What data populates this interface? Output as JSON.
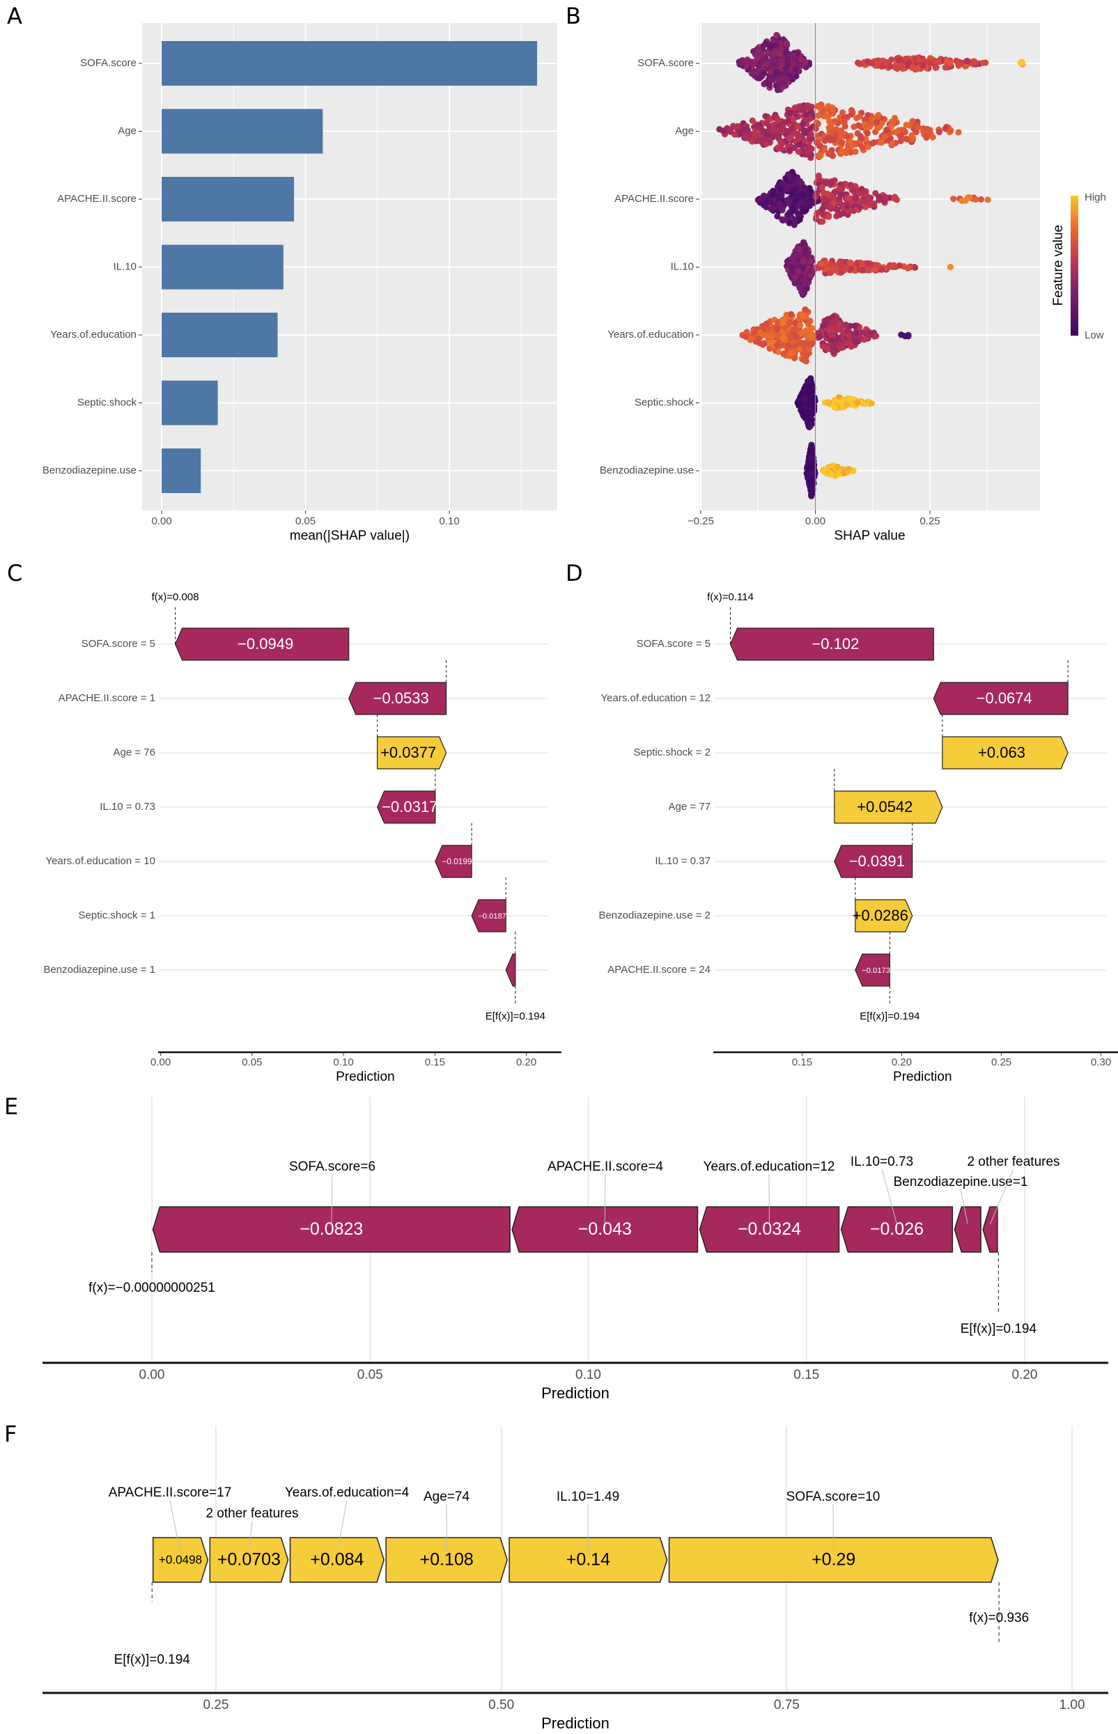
{
  "panel_labels": [
    "A",
    "B",
    "C",
    "D",
    "E",
    "F"
  ],
  "colors": {
    "bar": "#4e77a5",
    "panel_bg": "#ebebeb",
    "negative": "#a6295e",
    "positive": "#f5cd3a",
    "low": "#3d0965",
    "high": "#f9c82e"
  },
  "chart_data": [
    {
      "panel": "A",
      "type": "bar",
      "orientation": "horizontal",
      "categories": [
        "SOFA.score",
        "Age",
        "APACHE.II.score",
        "IL.10",
        "Years.of.education",
        "Septic.shock",
        "Benzodiazepine.use"
      ],
      "values": [
        0.1305,
        0.056,
        0.046,
        0.0423,
        0.0403,
        0.0195,
        0.0136
      ],
      "xlabel": "mean(|SHAP value|)",
      "xticks": [
        {
          "v": 0,
          "label": "0.00"
        },
        {
          "v": 0.05,
          "label": "0.05"
        },
        {
          "v": 0.1,
          "label": "0.10"
        }
      ],
      "xlim": [
        -0.0068,
        0.1375
      ],
      "grid": true
    },
    {
      "panel": "B",
      "type": "scatter",
      "subtype": "beeswarm",
      "categories": [
        "SOFA.score",
        "Age",
        "APACHE.II.score",
        "IL.10",
        "Years.of.education",
        "Septic.shock",
        "Benzodiazepine.use"
      ],
      "xlabel": "SHAP value",
      "xticks": [
        {
          "v": -0.25,
          "label": "−0.25"
        },
        {
          "v": 0,
          "label": "0.00"
        },
        {
          "v": 0.25,
          "label": "0.25"
        }
      ],
      "xlim": [
        -0.253,
        0.49
      ],
      "legend": {
        "title": "Feature value",
        "high": "High",
        "low": "Low",
        "placement": "right"
      },
      "distributions": [
        [
          {
            "from": -0.17,
            "to": -0.01,
            "peak": -0.085,
            "n": 260,
            "height": 1.0,
            "level": 0.3
          },
          {
            "from": 0.08,
            "to": 0.42,
            "peak": 0.2,
            "n": 150,
            "height": 0.22,
            "level": 0.6
          },
          {
            "from": 0.44,
            "to": 0.455,
            "peak": 0.45,
            "n": 4,
            "height": 0.1,
            "level": 0.95
          }
        ],
        [
          {
            "from": -0.22,
            "to": 0.0,
            "peak": -0.005,
            "n": 230,
            "height": 0.95,
            "level": 0.45
          },
          {
            "from": 0.0,
            "to": 0.34,
            "peak": 0.005,
            "n": 220,
            "height": 0.9,
            "level": 0.68
          }
        ],
        [
          {
            "from": -0.13,
            "to": 0.01,
            "peak": -0.05,
            "n": 220,
            "height": 0.95,
            "level": 0.12
          },
          {
            "from": 0.0,
            "to": 0.19,
            "peak": 0.0,
            "n": 160,
            "height": 0.8,
            "level": 0.5
          },
          {
            "from": 0.27,
            "to": 0.39,
            "peak": 0.33,
            "n": 12,
            "height": 0.08,
            "level": 0.75
          }
        ],
        [
          {
            "from": -0.07,
            "to": 0.0,
            "peak": -0.025,
            "n": 170,
            "height": 0.95,
            "level": 0.3
          },
          {
            "from": 0.0,
            "to": 0.24,
            "peak": 0.02,
            "n": 110,
            "height": 0.22,
            "level": 0.6
          },
          {
            "from": 0.285,
            "to": 0.295,
            "peak": 0.29,
            "n": 1,
            "height": 0.05,
            "level": 0.8
          }
        ],
        [
          {
            "from": -0.17,
            "to": 0.0,
            "peak": -0.02,
            "n": 220,
            "height": 0.95,
            "level": 0.72
          },
          {
            "from": 0.0,
            "to": 0.14,
            "peak": 0.03,
            "n": 160,
            "height": 0.7,
            "level": 0.45
          },
          {
            "from": 0.17,
            "to": 0.22,
            "peak": 0.2,
            "n": 4,
            "height": 0.05,
            "level": 0.1
          }
        ],
        [
          {
            "from": -0.04,
            "to": 0.0,
            "peak": -0.01,
            "n": 220,
            "height": 0.9,
            "level": 0.0
          },
          {
            "from": 0.02,
            "to": 0.13,
            "peak": 0.05,
            "n": 70,
            "height": 0.2,
            "level": 1.0
          }
        ],
        [
          {
            "from": -0.02,
            "to": 0.0,
            "peak": -0.008,
            "n": 200,
            "height": 0.9,
            "level": 0.0
          },
          {
            "from": 0.01,
            "to": 0.085,
            "peak": 0.04,
            "n": 70,
            "height": 0.18,
            "level": 1.0
          }
        ]
      ]
    },
    {
      "panel": "C",
      "type": "bar",
      "subtype": "waterfall",
      "features": [
        "SOFA.score = 5",
        "APACHE.II.score = 1",
        "Age = 76",
        "IL.10 = 0.73",
        "Years.of.education = 10",
        "Septic.shock = 1",
        "Benzodiazepine.use = 1"
      ],
      "values": [
        -0.0949,
        -0.0533,
        0.0377,
        -0.0317,
        -0.0199,
        -0.0187,
        -0.0052
      ],
      "value_labels": [
        "−0.0949",
        "−0.0533",
        "+0.0377",
        "−0.0317",
        "−0.0199",
        "−0.0187",
        ""
      ],
      "expected_value": 0.194,
      "prediction": 0.008,
      "fx_label": "f(x)=0.008",
      "efx_label": "E[f(x)]=0.194",
      "xlabel": "Prediction",
      "xticks": [
        {
          "v": 0,
          "label": "0.00"
        },
        {
          "v": 0.05,
          "label": "0.05"
        },
        {
          "v": 0.1,
          "label": "0.10"
        },
        {
          "v": 0.15,
          "label": "0.15"
        },
        {
          "v": 0.2,
          "label": "0.20"
        }
      ],
      "xlim": [
        -0.0055,
        0.2115
      ]
    },
    {
      "panel": "D",
      "type": "bar",
      "subtype": "waterfall",
      "features": [
        "SOFA.score = 5",
        "Years.of.education = 12",
        "Septic.shock = 2",
        "Age = 77",
        "IL.10 = 0.37",
        "Benzodiazepine.use = 2",
        "APACHE.II.score = 24"
      ],
      "values": [
        -0.102,
        -0.0674,
        0.063,
        0.0542,
        -0.0391,
        0.0286,
        -0.0173
      ],
      "value_labels": [
        "−0.102",
        "−0.0674",
        "+0.063",
        "+0.0542",
        "−0.0391",
        "+0.0286",
        "−0.0173"
      ],
      "expected_value": 0.194,
      "prediction": 0.114,
      "fx_label": "f(x)=0.114",
      "efx_label": "E[f(x)]=0.194",
      "xlabel": "Prediction",
      "xticks": [
        {
          "v": 0.15,
          "label": "0.15"
        },
        {
          "v": 0.2,
          "label": "0.20"
        },
        {
          "v": 0.25,
          "label": "0.25"
        },
        {
          "v": 0.3,
          "label": "0.30"
        }
      ],
      "xlim": [
        0.1074,
        0.3028
      ]
    },
    {
      "panel": "E",
      "type": "bar",
      "subtype": "force",
      "features": [
        "SOFA.score=6",
        "APACHE.II.score=4",
        "Years.of.education=12",
        "IL.10=0.73",
        "Benzodiazepine.use=1",
        "2 other features"
      ],
      "values": [
        -0.0823,
        -0.043,
        -0.0324,
        -0.026,
        -0.0065,
        -0.0038
      ],
      "value_labels": [
        "−0.0823",
        "−0.043",
        "−0.0324",
        "−0.026",
        "",
        ""
      ],
      "expected_value": 0.194,
      "prediction": -2.51e-09,
      "fx_label": "f(x)=−0.00000000251",
      "efx_label": "E[f(x)]=0.194",
      "xlabel": "Prediction",
      "xticks": [
        {
          "v": 0,
          "label": "0.00"
        },
        {
          "v": 0.05,
          "label": "0.05"
        },
        {
          "v": 0.1,
          "label": "0.10"
        },
        {
          "v": 0.15,
          "label": "0.15"
        },
        {
          "v": 0.2,
          "label": "0.20"
        }
      ],
      "xlim": [
        -0.025,
        0.219
      ]
    },
    {
      "panel": "F",
      "type": "bar",
      "subtype": "force",
      "features": [
        "APACHE.II.score=17",
        "2 other features",
        "Years.of.education=4",
        "Age=74",
        "IL.10=1.49",
        "SOFA.score=10"
      ],
      "values": [
        0.0498,
        0.0703,
        0.084,
        0.108,
        0.14,
        0.29
      ],
      "value_labels": [
        "+0.0498",
        "+0.0703",
        "+0.084",
        "+0.108",
        "+0.14",
        "+0.29"
      ],
      "expected_value": 0.194,
      "prediction": 0.936,
      "fx_label": "f(x)=0.936",
      "efx_label": "E[f(x)]=0.194",
      "xlabel": "Prediction",
      "xticks": [
        {
          "v": 0.25,
          "label": "0.25"
        },
        {
          "v": 0.5,
          "label": "0.50"
        },
        {
          "v": 0.75,
          "label": "0.75"
        },
        {
          "v": 1.0,
          "label": "1.00"
        }
      ],
      "xlim": [
        0.157,
        1.03
      ]
    }
  ]
}
